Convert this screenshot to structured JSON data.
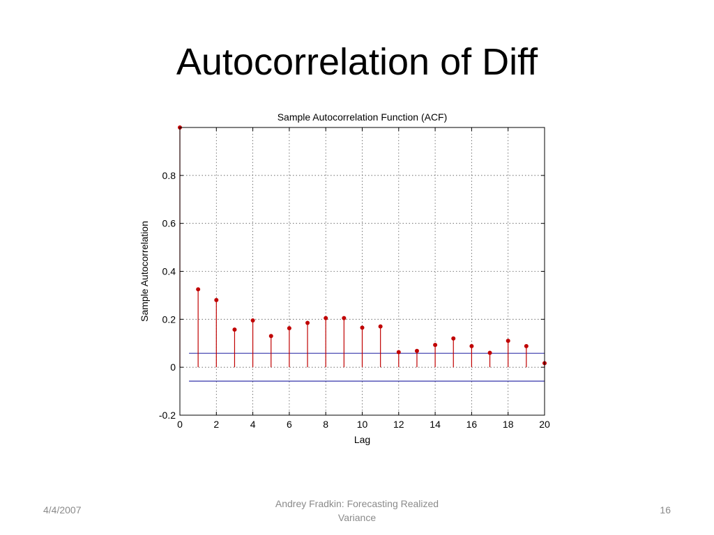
{
  "slide": {
    "title": "Autocorrelation of Diff",
    "footer_left": "4/4/2007",
    "footer_center_line1": "Andrey Fradkin: Forecasting Realized",
    "footer_center_line2": "Variance",
    "footer_right": "16"
  },
  "chart_data": {
    "type": "stem",
    "title": "Sample Autocorrelation Function (ACF)",
    "xlabel": "Lag",
    "ylabel": "Sample Autocorrelation",
    "xlim": [
      0,
      20
    ],
    "ylim": [
      -0.2,
      1.0
    ],
    "xticks": [
      "0",
      "2",
      "4",
      "6",
      "8",
      "10",
      "12",
      "14",
      "16",
      "18",
      "20"
    ],
    "yticks": [
      "-0.2",
      "0",
      "0.2",
      "0.4",
      "0.6",
      "0.8"
    ],
    "grid": true,
    "series": [
      {
        "x": [
          0,
          1,
          2,
          3,
          4,
          5,
          6,
          7,
          8,
          9,
          10,
          11,
          12,
          13,
          14,
          15,
          16,
          17,
          18,
          19,
          20
        ],
        "values": [
          1.0,
          0.325,
          0.28,
          0.157,
          0.195,
          0.13,
          0.163,
          0.185,
          0.205,
          0.205,
          0.165,
          0.17,
          0.063,
          0.068,
          0.093,
          0.12,
          0.088,
          0.06,
          0.11,
          0.088,
          0.017
        ],
        "color": "#c00000"
      }
    ],
    "confidence_bounds": {
      "upper": 0.058,
      "lower": -0.058,
      "color": "#3333aa"
    }
  }
}
